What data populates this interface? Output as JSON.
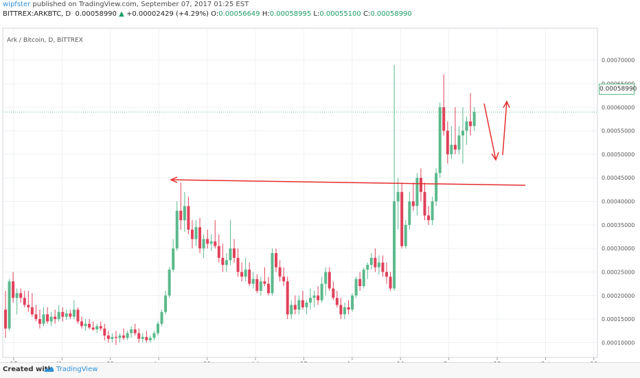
{
  "header": {
    "author": "wipfster",
    "published": "published on TradingView.com, September 07, 2017 01:25 EST",
    "symbol": "BITTREX:ARKBTC, D",
    "last_price": "0.00058990",
    "change_arrow": "▲",
    "change": "+0.00002429 (+4.29%)",
    "o_label": "O:",
    "o": "0.00056649",
    "h_label": "H:",
    "h": "0.00058995",
    "l_label": "L:",
    "l": "0.00055100",
    "c_label": "C:",
    "c": "0.00058990"
  },
  "chart_title": "Ark / Bitcoin, D, BITTREX",
  "price_tag": "0.00058990",
  "footer": {
    "created": "Created with",
    "brand": "TradingView"
  },
  "colors": {
    "up": "#5bb98c",
    "down": "#e0415a",
    "annotation": "#e52b2b",
    "grid": "#eef0f3"
  },
  "chart_data": {
    "type": "candlestick",
    "title": "Ark / Bitcoin, D, BITTREX",
    "y_ticks": [
      "0.00070000",
      "0.00065000",
      "0.00060000",
      "0.00055000",
      "0.00050000",
      "0.00045000",
      "0.00040000",
      "0.00035000",
      "0.00030000",
      "0.00025000",
      "0.00020000",
      "0.00015000",
      "0.00010000"
    ],
    "y_range": [
      6.85e-05,
      0.000768
    ],
    "x_ticks": [
      "17",
      "May",
      "15",
      "Jun",
      "19",
      "Jul",
      "17",
      "Aug",
      "14",
      "Sep",
      "18",
      "Oct",
      "16"
    ],
    "candles": [
      [
        0.00017,
        0.00021,
        0.00011,
        0.00013
      ],
      [
        0.00013,
        0.000235,
        0.000125,
        0.00023
      ],
      [
        0.00023,
        0.00025,
        0.000185,
        0.000195
      ],
      [
        0.000195,
        0.000215,
        0.00016,
        0.000205
      ],
      [
        0.000205,
        0.000215,
        0.000185,
        0.000195
      ],
      [
        0.000195,
        0.00021,
        0.000175,
        0.00018
      ],
      [
        0.00018,
        0.00021,
        0.000165,
        0.000175
      ],
      [
        0.000175,
        0.000205,
        0.000155,
        0.00016
      ],
      [
        0.00016,
        0.00018,
        0.000145,
        0.00015
      ],
      [
        0.00015,
        0.00017,
        0.00013,
        0.00014
      ],
      [
        0.00014,
        0.000175,
        0.000135,
        0.00016
      ],
      [
        0.00016,
        0.000175,
        0.00014,
        0.000145
      ],
      [
        0.000145,
        0.000165,
        0.000135,
        0.000155
      ],
      [
        0.000155,
        0.00017,
        0.00014,
        0.00015
      ],
      [
        0.00015,
        0.00018,
        0.000145,
        0.000165
      ],
      [
        0.000165,
        0.000175,
        0.000145,
        0.000155
      ],
      [
        0.000155,
        0.00017,
        0.000148,
        0.000162
      ],
      [
        0.000162,
        0.00017,
        0.00015,
        0.000155
      ],
      [
        0.000155,
        0.00019,
        0.00015,
        0.00017
      ],
      [
        0.00017,
        0.000175,
        0.00014,
        0.000145
      ],
      [
        0.000145,
        0.000155,
        0.00013,
        0.000135
      ],
      [
        0.000135,
        0.00015,
        0.000125,
        0.00014
      ],
      [
        0.00014,
        0.00015,
        0.000128,
        0.000132
      ],
      [
        0.000132,
        0.000145,
        0.000125,
        0.000128
      ],
      [
        0.000128,
        0.00014,
        0.00012,
        0.000135
      ],
      [
        0.000135,
        0.000145,
        0.000125,
        0.00013
      ],
      [
        0.00013,
        0.00014,
        0.000105,
        0.000115
      ],
      [
        0.000115,
        0.000125,
        0.0001,
        0.000108
      ],
      [
        0.000108,
        0.00012,
        0.0001,
        0.000112
      ],
      [
        0.000112,
        0.000125,
        9.5e-05,
        0.00011
      ],
      [
        0.00011,
        0.00012,
        0.0001,
        0.000115
      ],
      [
        0.000115,
        0.00013,
        0.000105,
        0.00011
      ],
      [
        0.00011,
        0.000125,
        0.000105,
        0.00012
      ],
      [
        0.00012,
        0.000135,
        0.00011,
        0.000128
      ],
      [
        0.000128,
        0.00014,
        0.000115,
        0.00012
      ],
      [
        0.00012,
        0.00013,
        0.0001,
        0.000108
      ],
      [
        0.000108,
        0.00012,
        0.0001,
        0.000112
      ],
      [
        0.000112,
        0.000125,
        0.0001,
        0.000105
      ],
      [
        0.000105,
        0.000115,
        0.0001,
        0.00011
      ],
      [
        0.00011,
        0.000125,
        0.000105,
        0.00012
      ],
      [
        0.00012,
        0.000145,
        0.000115,
        0.00014
      ],
      [
        0.00014,
        0.00017,
        0.000135,
        0.000165
      ],
      [
        0.000165,
        0.00021,
        0.00016,
        0.0002
      ],
      [
        0.0002,
        0.00026,
        0.000195,
        0.000255
      ],
      [
        0.000255,
        0.00032,
        0.00025,
        0.0003
      ],
      [
        0.0003,
        0.0004,
        0.000295,
        0.00038
      ],
      [
        0.00038,
        0.00044,
        0.00034,
        0.00036
      ],
      [
        0.00036,
        0.00042,
        0.000335,
        0.00039
      ],
      [
        0.00039,
        0.00041,
        0.00033,
        0.00034
      ],
      [
        0.00034,
        0.00036,
        0.0003,
        0.00032
      ],
      [
        0.00032,
        0.00036,
        0.000305,
        0.000345
      ],
      [
        0.000345,
        0.000365,
        0.00029,
        0.0003
      ],
      [
        0.0003,
        0.00033,
        0.00028,
        0.00032
      ],
      [
        0.00032,
        0.00034,
        0.0003,
        0.00031
      ],
      [
        0.00031,
        0.00033,
        0.000295,
        0.000315
      ],
      [
        0.000315,
        0.00036,
        0.0003,
        0.000305
      ],
      [
        0.000305,
        0.00033,
        0.00027,
        0.00028
      ],
      [
        0.00028,
        0.00031,
        0.00025,
        0.000265
      ],
      [
        0.000265,
        0.00029,
        0.00025,
        0.000275
      ],
      [
        0.000275,
        0.00036,
        0.000265,
        0.0003
      ],
      [
        0.0003,
        0.00032,
        0.00027,
        0.00028
      ],
      [
        0.00028,
        0.0003,
        0.00024,
        0.00025
      ],
      [
        0.00025,
        0.00027,
        0.00023,
        0.00024
      ],
      [
        0.00024,
        0.00028,
        0.00023,
        0.000255
      ],
      [
        0.000255,
        0.00027,
        0.00022,
        0.000225
      ],
      [
        0.000225,
        0.00025,
        0.000215,
        0.000235
      ],
      [
        0.000235,
        0.000245,
        0.000205,
        0.00021
      ],
      [
        0.00021,
        0.00024,
        0.0002,
        0.00023
      ],
      [
        0.00023,
        0.00026,
        0.00022,
        0.000225
      ],
      [
        0.000225,
        0.00024,
        0.0002,
        0.000205
      ],
      [
        0.000205,
        0.0003,
        0.0002,
        0.00029
      ],
      [
        0.00029,
        0.0003,
        0.00025,
        0.00026
      ],
      [
        0.00026,
        0.000275,
        0.00023,
        0.00024
      ],
      [
        0.00024,
        0.00026,
        0.00022,
        0.00023
      ],
      [
        0.00023,
        0.00024,
        0.00015,
        0.00016
      ],
      [
        0.00016,
        0.00019,
        0.00015,
        0.00018
      ],
      [
        0.00018,
        0.0002,
        0.00016,
        0.00017
      ],
      [
        0.00017,
        0.0002,
        0.00016,
        0.00019
      ],
      [
        0.00019,
        0.00021,
        0.00017,
        0.000175
      ],
      [
        0.000175,
        0.00019,
        0.00016,
        0.000185
      ],
      [
        0.000185,
        0.000215,
        0.00017,
        0.000195
      ],
      [
        0.000195,
        0.00021,
        0.000175,
        0.0002
      ],
      [
        0.0002,
        0.00022,
        0.00018,
        0.00019
      ],
      [
        0.00019,
        0.00024,
        0.000185,
        0.000225
      ],
      [
        0.000225,
        0.00026,
        0.0002,
        0.00025
      ],
      [
        0.00025,
        0.00026,
        0.00021,
        0.000215
      ],
      [
        0.000215,
        0.00023,
        0.00019,
        0.000195
      ],
      [
        0.000195,
        0.00021,
        0.000175,
        0.00018
      ],
      [
        0.00018,
        0.000195,
        0.00015,
        0.00016
      ],
      [
        0.00016,
        0.000185,
        0.00015,
        0.000175
      ],
      [
        0.000175,
        0.00019,
        0.00016,
        0.00017
      ],
      [
        0.00017,
        0.000205,
        0.000165,
        0.0002
      ],
      [
        0.0002,
        0.00024,
        0.000195,
        0.000235
      ],
      [
        0.000235,
        0.00025,
        0.00021,
        0.00022
      ],
      [
        0.00022,
        0.00026,
        0.000215,
        0.000255
      ],
      [
        0.000255,
        0.00027,
        0.000235,
        0.000265
      ],
      [
        0.000265,
        0.00029,
        0.000255,
        0.00028
      ],
      [
        0.00028,
        0.0003,
        0.00025,
        0.00026
      ],
      [
        0.00026,
        0.000285,
        0.000245,
        0.00027
      ],
      [
        0.00027,
        0.000285,
        0.00024,
        0.00025
      ],
      [
        0.00025,
        0.00027,
        0.000225,
        0.00024
      ],
      [
        0.00024,
        0.00025,
        0.00021,
        0.000215
      ],
      [
        0.000215,
        0.00069,
        0.00021,
        0.0004
      ],
      [
        0.0004,
        0.00045,
        0.00034,
        0.00042
      ],
      [
        0.00042,
        0.00044,
        0.0003,
        0.000305
      ],
      [
        0.000305,
        0.00036,
        0.0003,
        0.00035
      ],
      [
        0.00035,
        0.00042,
        0.00034,
        0.0004
      ],
      [
        0.0004,
        0.00044,
        0.00038,
        0.00039
      ],
      [
        0.00039,
        0.00046,
        0.00037,
        0.00045
      ],
      [
        0.00045,
        0.00047,
        0.0004,
        0.00042
      ],
      [
        0.00042,
        0.00044,
        0.00036,
        0.00037
      ],
      [
        0.00037,
        0.00039,
        0.00035,
        0.00036
      ],
      [
        0.00036,
        0.00041,
        0.00035,
        0.0004
      ],
      [
        0.0004,
        0.00047,
        0.00039,
        0.00046
      ],
      [
        0.00046,
        0.00061,
        0.00045,
        0.0006
      ],
      [
        0.0006,
        0.00067,
        0.00054,
        0.00055
      ],
      [
        0.00055,
        0.00057,
        0.00048,
        0.0005
      ],
      [
        0.0005,
        0.00056,
        0.00049,
        0.00052
      ],
      [
        0.00052,
        0.0006,
        0.0005,
        0.00051
      ],
      [
        0.00051,
        0.00056,
        0.0005,
        0.00054
      ],
      [
        0.00054,
        0.0006,
        0.00048,
        0.00055
      ],
      [
        0.00055,
        0.00058,
        0.00052,
        0.00057
      ],
      [
        0.00057,
        0.00063,
        0.00054,
        0.00056
      ],
      [
        0.00056,
        0.0006,
        0.00055,
        0.00059
      ]
    ],
    "horizontal_level": 0.00044,
    "current_price": 0.0005899
  }
}
